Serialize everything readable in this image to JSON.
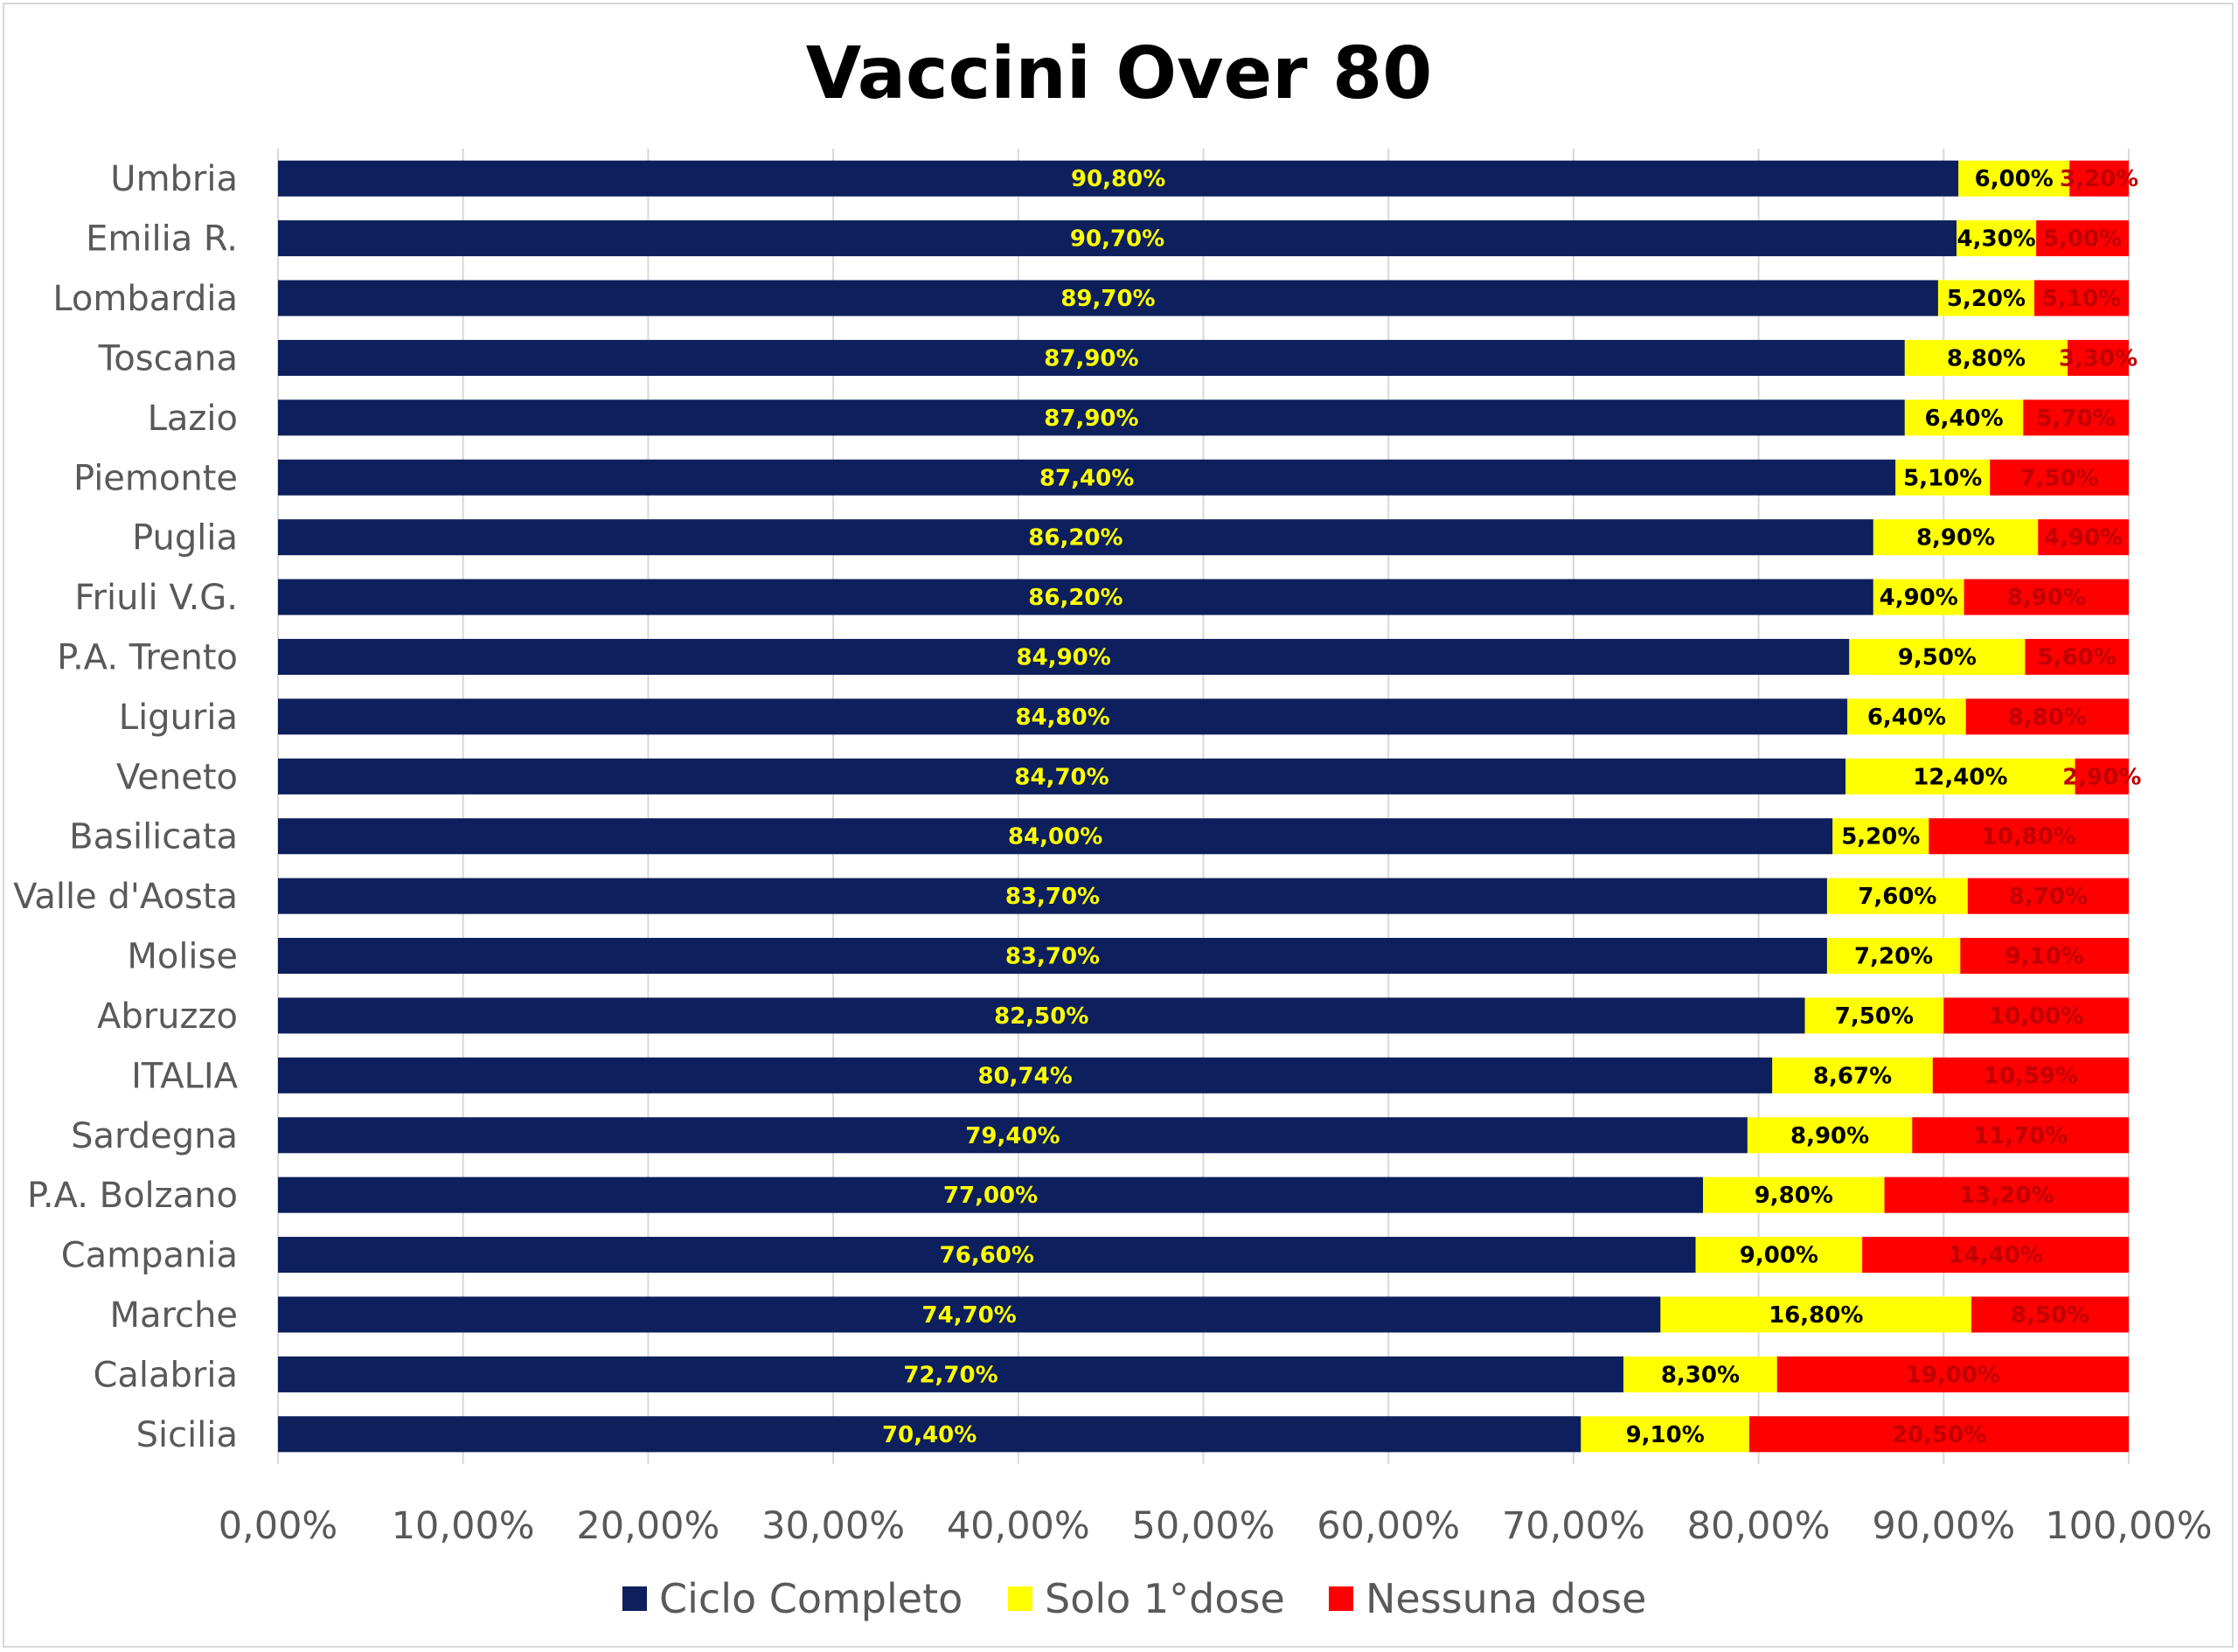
{
  "chart_data": {
    "type": "bar",
    "orientation": "horizontal",
    "stacked": true,
    "title": "Vaccini Over 80",
    "categories": [
      "Umbria",
      "Emilia R.",
      "Lombardia",
      "Toscana",
      "Lazio",
      "Piemonte",
      "Puglia",
      "Friuli V.G.",
      "P.A. Trento",
      "Liguria",
      "Veneto",
      "Basilicata",
      "Valle d'Aosta",
      "Molise",
      "Abruzzo",
      "ITALIA",
      "Sardegna",
      "P.A. Bolzano",
      "Campania",
      "Marche",
      "Calabria",
      "Sicilia"
    ],
    "series": [
      {
        "name": "Ciclo Completo",
        "color": "#0d1f5c",
        "label_color": "#ffff00",
        "values": [
          90.8,
          90.7,
          89.7,
          87.9,
          87.9,
          87.4,
          86.2,
          86.2,
          84.9,
          84.8,
          84.7,
          84.0,
          83.7,
          83.7,
          82.5,
          80.74,
          79.4,
          77.0,
          76.6,
          74.7,
          72.7,
          70.4
        ],
        "labels": [
          "90,80%",
          "90,70%",
          "89,70%",
          "87,90%",
          "87,90%",
          "87,40%",
          "86,20%",
          "86,20%",
          "84,90%",
          "84,80%",
          "84,70%",
          "84,00%",
          "83,70%",
          "83,70%",
          "82,50%",
          "80,74%",
          "79,40%",
          "77,00%",
          "76,60%",
          "74,70%",
          "72,70%",
          "70,40%"
        ]
      },
      {
        "name": "Solo 1°dose",
        "color": "#ffff00",
        "label_color": "#000000",
        "values": [
          6.0,
          4.3,
          5.2,
          8.8,
          6.4,
          5.1,
          8.9,
          4.9,
          9.5,
          6.4,
          12.4,
          5.2,
          7.6,
          7.2,
          7.5,
          8.67,
          8.9,
          9.8,
          9.0,
          16.8,
          8.3,
          9.1
        ],
        "labels": [
          "6,00%",
          "4,30%",
          "5,20%",
          "8,80%",
          "6,40%",
          "5,10%",
          "8,90%",
          "4,90%",
          "9,50%",
          "6,40%",
          "12,40%",
          "5,20%",
          "7,60%",
          "7,20%",
          "7,50%",
          "8,67%",
          "8,90%",
          "9,80%",
          "9,00%",
          "16,80%",
          "8,30%",
          "9,10%"
        ]
      },
      {
        "name": "Nessuna dose",
        "color": "#ff0000",
        "label_color": "#c00000",
        "values": [
          3.2,
          5.0,
          5.1,
          3.3,
          5.7,
          7.5,
          4.9,
          8.9,
          5.6,
          8.8,
          2.9,
          10.8,
          8.7,
          9.1,
          10.0,
          10.59,
          11.7,
          13.2,
          14.4,
          8.5,
          19.0,
          20.5
        ],
        "labels": [
          "3,20%",
          "5,00%",
          "5,10%",
          "3,30%",
          "5,70%",
          "7,50%",
          "4,90%",
          "8,90%",
          "5,60%",
          "8,80%",
          "2,90%",
          "10,80%",
          "8,70%",
          "9,10%",
          "10,00%",
          "10,59%",
          "11,70%",
          "13,20%",
          "14,40%",
          "8,50%",
          "19,00%",
          "20,50%"
        ]
      }
    ],
    "xlim": [
      0,
      100
    ],
    "x_ticks": [
      0,
      10,
      20,
      30,
      40,
      50,
      60,
      70,
      80,
      90,
      100
    ],
    "x_tick_labels": [
      "0,00%",
      "10,00%",
      "20,00%",
      "30,00%",
      "40,00%",
      "50,00%",
      "60,00%",
      "70,00%",
      "80,00%",
      "90,00%",
      "100,00%"
    ],
    "grid": "vertical",
    "legend_position": "bottom"
  }
}
